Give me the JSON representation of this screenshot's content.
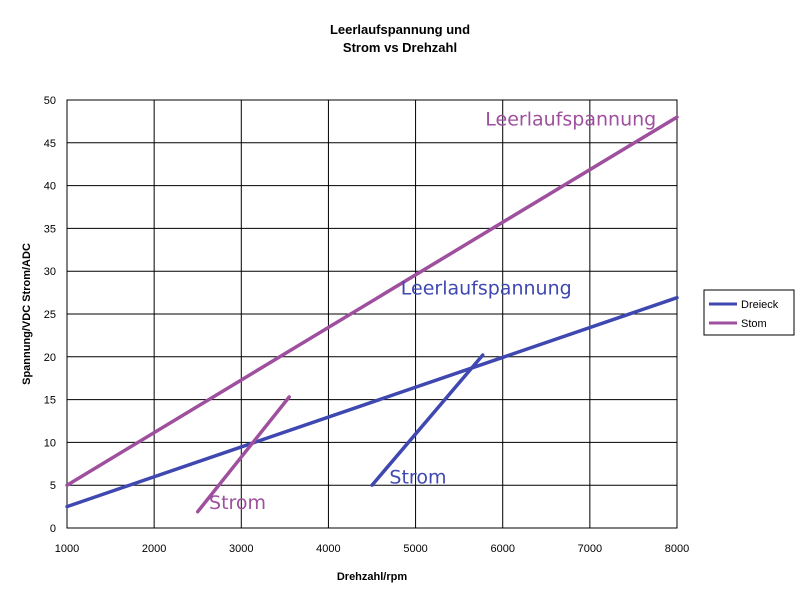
{
  "chart_data": {
    "type": "line",
    "title_line1": "Leerlaufspannung und",
    "title_line2": "Strom vs Drehzahl",
    "xlabel": "Drehzahl/rpm",
    "ylabel": "Spannung/VDC Strom/ADC",
    "xlim": [
      1000,
      8000
    ],
    "ylim": [
      0,
      50
    ],
    "xticks": [
      "1000",
      "2000",
      "3000",
      "4000",
      "5000",
      "6000",
      "7000",
      "8000"
    ],
    "yticks": [
      "0",
      "5",
      "10",
      "15",
      "20",
      "25",
      "30",
      "35",
      "40",
      "45",
      "50"
    ],
    "grid": true,
    "legend_position": "right",
    "colors": {
      "dreieck": "#3f48b0",
      "stom": "#9e4f9e"
    },
    "series": [
      {
        "name": "Dreieck",
        "kind": "Leerlaufspannung",
        "color": "#3f48b0",
        "points": [
          [
            1000,
            2.5
          ],
          [
            8000,
            26.9
          ]
        ]
      },
      {
        "name": "Dreieck",
        "kind": "Strom",
        "color": "#3f48b0",
        "points": [
          [
            4500,
            5
          ],
          [
            5770,
            20.2
          ]
        ]
      },
      {
        "name": "Stom",
        "kind": "Leerlaufspannung",
        "color": "#9e4f9e",
        "points": [
          [
            1000,
            5
          ],
          [
            8000,
            48
          ]
        ]
      },
      {
        "name": "Stom",
        "kind": "Strom",
        "color": "#9e4f9e",
        "points": [
          [
            2500,
            1.9
          ],
          [
            3550,
            15.3
          ]
        ]
      }
    ],
    "legend": [
      {
        "label": "Dreieck",
        "color": "#3f48b0"
      },
      {
        "label": "Stom",
        "color": "#9e4f9e"
      }
    ],
    "annotations": [
      {
        "text": "Leerlaufspannung",
        "x": 5800,
        "y": 47,
        "color": "#9e4f9e"
      },
      {
        "text": "Leerlaufspannung",
        "x": 4830,
        "y": 27.3,
        "color": "#3f48b0"
      },
      {
        "text": "Strom",
        "x": 4700,
        "y": 5.2,
        "color": "#3f48b0"
      },
      {
        "text": "Strom",
        "x": 2630,
        "y": 2.2,
        "color": "#9e4f9e"
      }
    ]
  }
}
